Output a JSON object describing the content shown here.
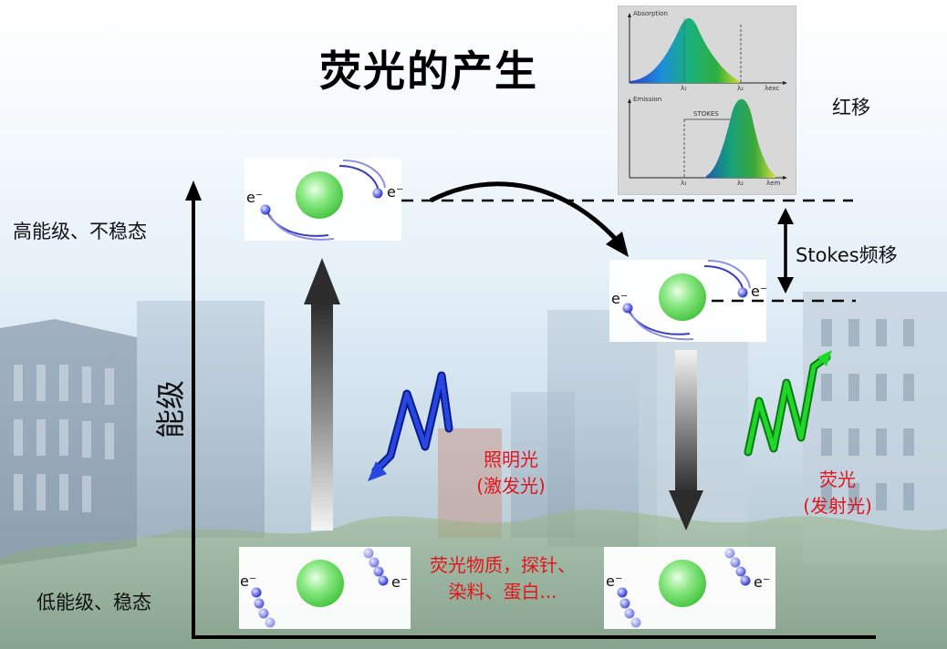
{
  "title": "荧光的产生",
  "energy_axis": {
    "label": "能级"
  },
  "levels": {
    "high": "高能级、不稳态",
    "low": "低能级、稳态"
  },
  "electron_symbol": "e⁻",
  "excitation": {
    "line1": "照明光",
    "line2": "(激发光)"
  },
  "emission": {
    "line1": "荧光",
    "line2": "(发射光)"
  },
  "substances": {
    "line1": "荧光物质，探针、",
    "line2": "染料、蛋白..."
  },
  "stokes_shift": "Stokes频移",
  "red_shift": "红移",
  "spectrum_inset": {
    "absorption_label": "Absorption",
    "emission_label": "Emission",
    "stokes_label": "STOKES",
    "lambda1": "λ₁",
    "lambda2": "λ₂",
    "lambda_exc": "λexc",
    "lambda_em": "λem"
  },
  "colors": {
    "excitation_wave": "#1f3fd6",
    "emission_wave": "#13c41b",
    "label_red": "#e0161c",
    "nucleus": "#7ee07a"
  }
}
